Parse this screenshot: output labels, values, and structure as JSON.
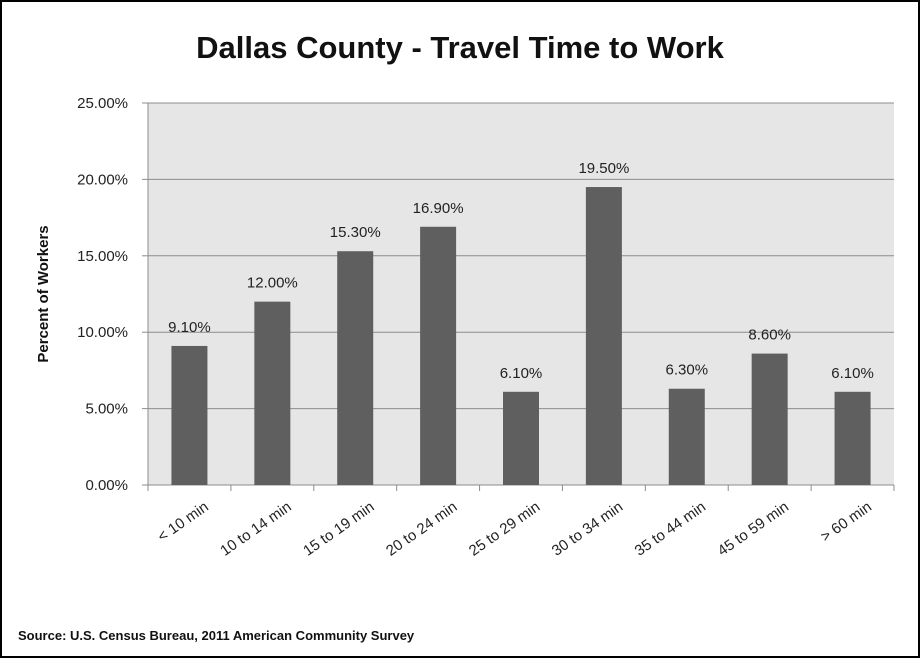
{
  "title": "Dallas County - Travel Time to Work",
  "source": "Source: U.S. Census Bureau, 2011 American Community Survey",
  "colors": {
    "bar": "#5f5f5f",
    "plot_bg": "#e6e6e6",
    "grid": "#8c8c8c"
  },
  "chart_data": {
    "type": "bar",
    "title": "Dallas County - Travel Time to Work",
    "xlabel": "",
    "ylabel": "Percent of Workers",
    "ylim": [
      0,
      25
    ],
    "yticks": [
      "0.00%",
      "5.00%",
      "10.00%",
      "15.00%",
      "20.00%",
      "25.00%"
    ],
    "categories": [
      "< 10 min",
      "10 to 14 min",
      "15 to 19 min",
      "20 to 24 min",
      "25 to 29 min",
      "30 to 34 min",
      "35 to 44 min",
      "45 to 59 min",
      "> 60 min"
    ],
    "values": [
      9.1,
      12.0,
      15.3,
      16.9,
      6.1,
      19.5,
      6.3,
      8.6,
      6.1
    ],
    "data_labels": [
      "9.10%",
      "12.00%",
      "15.30%",
      "16.90%",
      "6.10%",
      "19.50%",
      "6.30%",
      "8.60%",
      "6.10%"
    ],
    "grid": true,
    "legend": "none"
  }
}
